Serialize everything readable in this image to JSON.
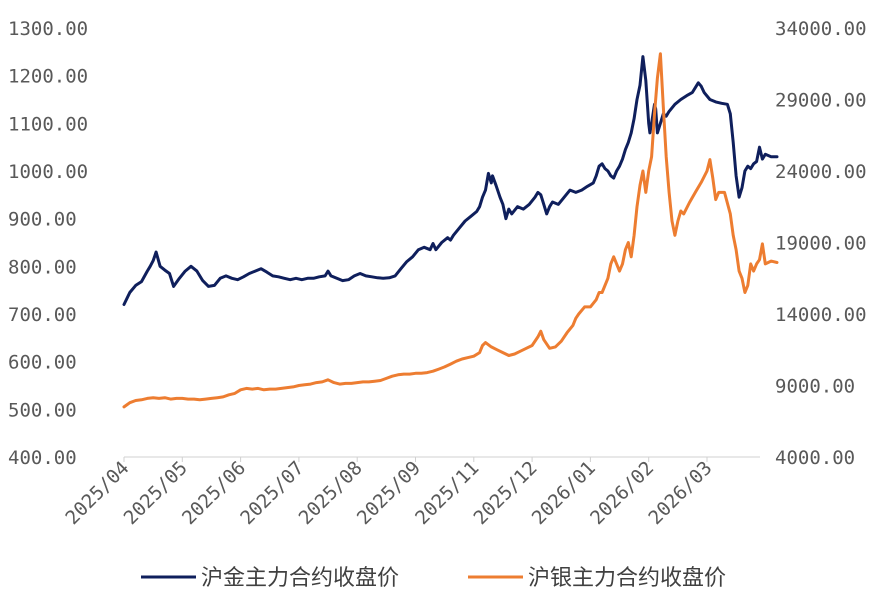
{
  "chart_data": {
    "type": "line",
    "x_ticks": [
      "2025/04",
      "2025/05",
      "2025/06",
      "2025/07",
      "2025/08",
      "2025/09",
      "2025/11",
      "2025/12",
      "2026/01",
      "2026/02",
      "2026/03"
    ],
    "left_axis": {
      "ylim": [
        400,
        1300
      ],
      "ticks": [
        "1300.00",
        "1200.00",
        "1100.00",
        "1000.00",
        "900.00",
        "800.00",
        "700.00",
        "600.00",
        "500.00",
        "400.00"
      ]
    },
    "right_axis": {
      "ylim": [
        4000,
        34000
      ],
      "ticks": [
        "34000.00",
        "29000.00",
        "24000.00",
        "19000.00",
        "14000.00",
        "9000.00",
        "4000.00"
      ]
    },
    "series": [
      {
        "name": "沪金主力合约收盘价",
        "axis": "left",
        "color": "#0f1f5c",
        "points": [
          [
            0.0,
            720
          ],
          [
            0.1,
            745
          ],
          [
            0.2,
            760
          ],
          [
            0.3,
            768
          ],
          [
            0.4,
            790
          ],
          [
            0.45,
            800
          ],
          [
            0.5,
            812
          ],
          [
            0.55,
            830
          ],
          [
            0.62,
            800
          ],
          [
            0.7,
            792
          ],
          [
            0.78,
            785
          ],
          [
            0.85,
            758
          ],
          [
            0.95,
            775
          ],
          [
            1.05,
            790
          ],
          [
            1.15,
            800
          ],
          [
            1.25,
            790
          ],
          [
            1.35,
            770
          ],
          [
            1.45,
            758
          ],
          [
            1.55,
            760
          ],
          [
            1.65,
            775
          ],
          [
            1.75,
            780
          ],
          [
            1.85,
            775
          ],
          [
            1.95,
            772
          ],
          [
            2.05,
            778
          ],
          [
            2.15,
            785
          ],
          [
            2.25,
            790
          ],
          [
            2.35,
            795
          ],
          [
            2.45,
            788
          ],
          [
            2.55,
            780
          ],
          [
            2.65,
            778
          ],
          [
            2.75,
            775
          ],
          [
            2.85,
            772
          ],
          [
            2.95,
            775
          ],
          [
            3.05,
            772
          ],
          [
            3.15,
            775
          ],
          [
            3.25,
            775
          ],
          [
            3.35,
            778
          ],
          [
            3.45,
            780
          ],
          [
            3.5,
            790
          ],
          [
            3.55,
            780
          ],
          [
            3.65,
            775
          ],
          [
            3.75,
            770
          ],
          [
            3.85,
            772
          ],
          [
            3.95,
            780
          ],
          [
            4.05,
            785
          ],
          [
            4.15,
            780
          ],
          [
            4.25,
            778
          ],
          [
            4.35,
            776
          ],
          [
            4.45,
            775
          ],
          [
            4.55,
            776
          ],
          [
            4.65,
            780
          ],
          [
            4.75,
            795
          ],
          [
            4.85,
            810
          ],
          [
            4.95,
            820
          ],
          [
            5.05,
            835
          ],
          [
            5.15,
            840
          ],
          [
            5.25,
            835
          ],
          [
            5.3,
            848
          ],
          [
            5.35,
            835
          ],
          [
            5.45,
            850
          ],
          [
            5.55,
            860
          ],
          [
            5.6,
            855
          ],
          [
            5.65,
            865
          ],
          [
            5.75,
            880
          ],
          [
            5.85,
            895
          ],
          [
            5.95,
            905
          ],
          [
            6.05,
            915
          ],
          [
            6.1,
            925
          ],
          [
            6.15,
            945
          ],
          [
            6.2,
            960
          ],
          [
            6.25,
            995
          ],
          [
            6.3,
            975
          ],
          [
            6.32,
            990
          ],
          [
            6.38,
            970
          ],
          [
            6.45,
            945
          ],
          [
            6.5,
            930
          ],
          [
            6.55,
            900
          ],
          [
            6.6,
            920
          ],
          [
            6.65,
            910
          ],
          [
            6.75,
            925
          ],
          [
            6.85,
            920
          ],
          [
            6.95,
            930
          ],
          [
            7.05,
            945
          ],
          [
            7.1,
            955
          ],
          [
            7.15,
            950
          ],
          [
            7.2,
            930
          ],
          [
            7.25,
            910
          ],
          [
            7.3,
            925
          ],
          [
            7.35,
            935
          ],
          [
            7.45,
            930
          ],
          [
            7.55,
            945
          ],
          [
            7.65,
            960
          ],
          [
            7.75,
            955
          ],
          [
            7.85,
            960
          ],
          [
            7.95,
            968
          ],
          [
            8.05,
            975
          ],
          [
            8.1,
            990
          ],
          [
            8.15,
            1010
          ],
          [
            8.2,
            1015
          ],
          [
            8.25,
            1005
          ],
          [
            8.3,
            1000
          ],
          [
            8.35,
            990
          ],
          [
            8.4,
            985
          ],
          [
            8.45,
            1000
          ],
          [
            8.5,
            1010
          ],
          [
            8.55,
            1025
          ],
          [
            8.6,
            1045
          ],
          [
            8.65,
            1060
          ],
          [
            8.7,
            1080
          ],
          [
            8.75,
            1110
          ],
          [
            8.8,
            1150
          ],
          [
            8.85,
            1180
          ],
          [
            8.9,
            1240
          ],
          [
            8.95,
            1190
          ],
          [
            9.0,
            1100
          ],
          [
            9.02,
            1080
          ],
          [
            9.05,
            1100
          ],
          [
            9.1,
            1140
          ],
          [
            9.12,
            1130
          ],
          [
            9.15,
            1080
          ],
          [
            9.2,
            1100
          ],
          [
            9.25,
            1120
          ],
          [
            9.3,
            1115
          ],
          [
            9.35,
            1125
          ],
          [
            9.45,
            1140
          ],
          [
            9.55,
            1150
          ],
          [
            9.65,
            1158
          ],
          [
            9.75,
            1165
          ],
          [
            9.85,
            1185
          ],
          [
            9.9,
            1178
          ],
          [
            9.95,
            1165
          ],
          [
            10.05,
            1150
          ],
          [
            10.15,
            1145
          ],
          [
            10.25,
            1142
          ],
          [
            10.35,
            1140
          ],
          [
            10.4,
            1120
          ],
          [
            10.45,
            1060
          ],
          [
            10.5,
            990
          ],
          [
            10.55,
            945
          ],
          [
            10.6,
            965
          ],
          [
            10.65,
            1000
          ],
          [
            10.7,
            1010
          ],
          [
            10.75,
            1005
          ],
          [
            10.8,
            1015
          ],
          [
            10.85,
            1020
          ],
          [
            10.9,
            1050
          ],
          [
            10.95,
            1025
          ],
          [
            11.0,
            1035
          ],
          [
            11.1,
            1030
          ],
          [
            11.2,
            1030
          ]
        ]
      },
      {
        "name": "沪银主力合约收盘价",
        "axis": "right",
        "color": "#ed7d31",
        "points": [
          [
            0.0,
            7500
          ],
          [
            0.1,
            7800
          ],
          [
            0.2,
            7950
          ],
          [
            0.3,
            8000
          ],
          [
            0.4,
            8100
          ],
          [
            0.5,
            8150
          ],
          [
            0.6,
            8100
          ],
          [
            0.7,
            8150
          ],
          [
            0.8,
            8050
          ],
          [
            0.9,
            8100
          ],
          [
            1.0,
            8100
          ],
          [
            1.1,
            8050
          ],
          [
            1.2,
            8050
          ],
          [
            1.3,
            8000
          ],
          [
            1.4,
            8050
          ],
          [
            1.5,
            8100
          ],
          [
            1.6,
            8150
          ],
          [
            1.7,
            8200
          ],
          [
            1.8,
            8350
          ],
          [
            1.9,
            8450
          ],
          [
            2.0,
            8700
          ],
          [
            2.1,
            8800
          ],
          [
            2.2,
            8750
          ],
          [
            2.3,
            8800
          ],
          [
            2.4,
            8700
          ],
          [
            2.5,
            8750
          ],
          [
            2.6,
            8750
          ],
          [
            2.7,
            8800
          ],
          [
            2.8,
            8850
          ],
          [
            2.9,
            8900
          ],
          [
            3.0,
            9000
          ],
          [
            3.1,
            9050
          ],
          [
            3.2,
            9100
          ],
          [
            3.3,
            9200
          ],
          [
            3.4,
            9250
          ],
          [
            3.5,
            9400
          ],
          [
            3.6,
            9200
          ],
          [
            3.7,
            9100
          ],
          [
            3.8,
            9150
          ],
          [
            3.9,
            9150
          ],
          [
            4.0,
            9200
          ],
          [
            4.1,
            9250
          ],
          [
            4.2,
            9250
          ],
          [
            4.3,
            9300
          ],
          [
            4.4,
            9350
          ],
          [
            4.5,
            9500
          ],
          [
            4.6,
            9650
          ],
          [
            4.7,
            9750
          ],
          [
            4.8,
            9800
          ],
          [
            4.9,
            9800
          ],
          [
            5.0,
            9850
          ],
          [
            5.1,
            9850
          ],
          [
            5.2,
            9900
          ],
          [
            5.3,
            10000
          ],
          [
            5.4,
            10150
          ],
          [
            5.5,
            10300
          ],
          [
            5.6,
            10500
          ],
          [
            5.7,
            10700
          ],
          [
            5.8,
            10850
          ],
          [
            5.9,
            10950
          ],
          [
            6.0,
            11050
          ],
          [
            6.1,
            11300
          ],
          [
            6.15,
            11800
          ],
          [
            6.2,
            12000
          ],
          [
            6.3,
            11700
          ],
          [
            6.4,
            11500
          ],
          [
            6.5,
            11300
          ],
          [
            6.6,
            11100
          ],
          [
            6.7,
            11200
          ],
          [
            6.8,
            11400
          ],
          [
            6.9,
            11600
          ],
          [
            7.0,
            11800
          ],
          [
            7.1,
            12400
          ],
          [
            7.15,
            12800
          ],
          [
            7.2,
            12200
          ],
          [
            7.3,
            11600
          ],
          [
            7.4,
            11700
          ],
          [
            7.5,
            12100
          ],
          [
            7.6,
            12700
          ],
          [
            7.7,
            13200
          ],
          [
            7.75,
            13700
          ],
          [
            7.8,
            14000
          ],
          [
            7.9,
            14500
          ],
          [
            8.0,
            14500
          ],
          [
            8.1,
            15000
          ],
          [
            8.15,
            15500
          ],
          [
            8.2,
            15500
          ],
          [
            8.3,
            16500
          ],
          [
            8.35,
            17500
          ],
          [
            8.4,
            18000
          ],
          [
            8.45,
            17500
          ],
          [
            8.5,
            17000
          ],
          [
            8.55,
            17500
          ],
          [
            8.6,
            18500
          ],
          [
            8.65,
            19000
          ],
          [
            8.7,
            18000
          ],
          [
            8.75,
            19500
          ],
          [
            8.8,
            21500
          ],
          [
            8.85,
            23000
          ],
          [
            8.9,
            24000
          ],
          [
            8.95,
            22500
          ],
          [
            9.0,
            24000
          ],
          [
            9.05,
            25000
          ],
          [
            9.1,
            28000
          ],
          [
            9.15,
            30500
          ],
          [
            9.2,
            32200
          ],
          [
            9.25,
            28500
          ],
          [
            9.3,
            25000
          ],
          [
            9.35,
            22500
          ],
          [
            9.4,
            20500
          ],
          [
            9.45,
            19500
          ],
          [
            9.5,
            20500
          ],
          [
            9.55,
            21200
          ],
          [
            9.6,
            21000
          ],
          [
            9.7,
            21800
          ],
          [
            9.8,
            22500
          ],
          [
            9.9,
            23200
          ],
          [
            10.0,
            24000
          ],
          [
            10.05,
            24800
          ],
          [
            10.1,
            23500
          ],
          [
            10.15,
            22000
          ],
          [
            10.2,
            22500
          ],
          [
            10.3,
            22500
          ],
          [
            10.4,
            21000
          ],
          [
            10.45,
            19500
          ],
          [
            10.5,
            18500
          ],
          [
            10.55,
            17000
          ],
          [
            10.6,
            16500
          ],
          [
            10.65,
            15500
          ],
          [
            10.7,
            16000
          ],
          [
            10.75,
            17500
          ],
          [
            10.8,
            17000
          ],
          [
            10.85,
            17500
          ],
          [
            10.9,
            17800
          ],
          [
            10.95,
            18900
          ],
          [
            11.0,
            17500
          ],
          [
            11.1,
            17700
          ],
          [
            11.2,
            17600
          ]
        ]
      }
    ]
  }
}
